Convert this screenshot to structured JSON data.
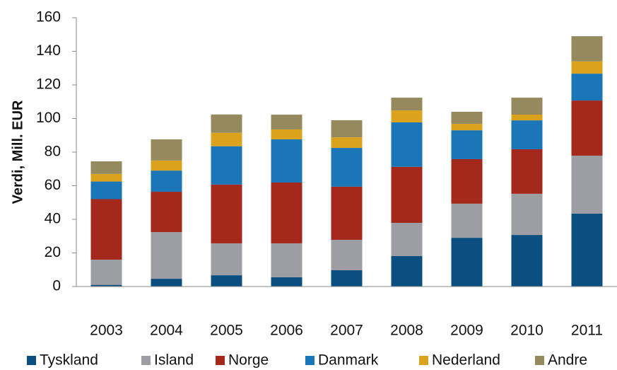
{
  "chart_data": {
    "type": "stacked_bar",
    "y_label": "Verdi, Mill. EUR",
    "categories": [
      "2003",
      "2004",
      "2005",
      "2006",
      "2007",
      "2008",
      "2009",
      "2010",
      "2011"
    ],
    "series": [
      {
        "name": "Tyskland",
        "color": "#0b4f80",
        "values": [
          1,
          4.6,
          6.7,
          5.5,
          9.7,
          18.1,
          29,
          30.7,
          43.4
        ]
      },
      {
        "name": "Island",
        "color": "#9c9ea3",
        "values": [
          15,
          27.8,
          19,
          20.2,
          18.1,
          19.8,
          20.3,
          24.5,
          34.5
        ]
      },
      {
        "name": "Norge",
        "color": "#a5281c",
        "values": [
          36,
          24,
          35,
          36.2,
          31.6,
          33.3,
          26.5,
          26.5,
          32.8
        ]
      },
      {
        "name": "Danmark",
        "color": "#1b76b8",
        "values": [
          10.5,
          12.6,
          22.8,
          25.7,
          23.1,
          26.5,
          17.2,
          17.2,
          16
        ]
      },
      {
        "name": "Nederland",
        "color": "#dba31b",
        "values": [
          4.5,
          6,
          8,
          5.9,
          6.3,
          7.1,
          3.8,
          3.4,
          7.3
        ]
      },
      {
        "name": "Andre",
        "color": "#958a5e",
        "values": [
          7.5,
          12.6,
          10.9,
          8.8,
          10.2,
          7.6,
          7.2,
          10.1,
          15
        ]
      }
    ],
    "ylim": [
      0,
      160
    ],
    "yticks": [
      0,
      20,
      40,
      60,
      80,
      100,
      120,
      140,
      160
    ]
  }
}
